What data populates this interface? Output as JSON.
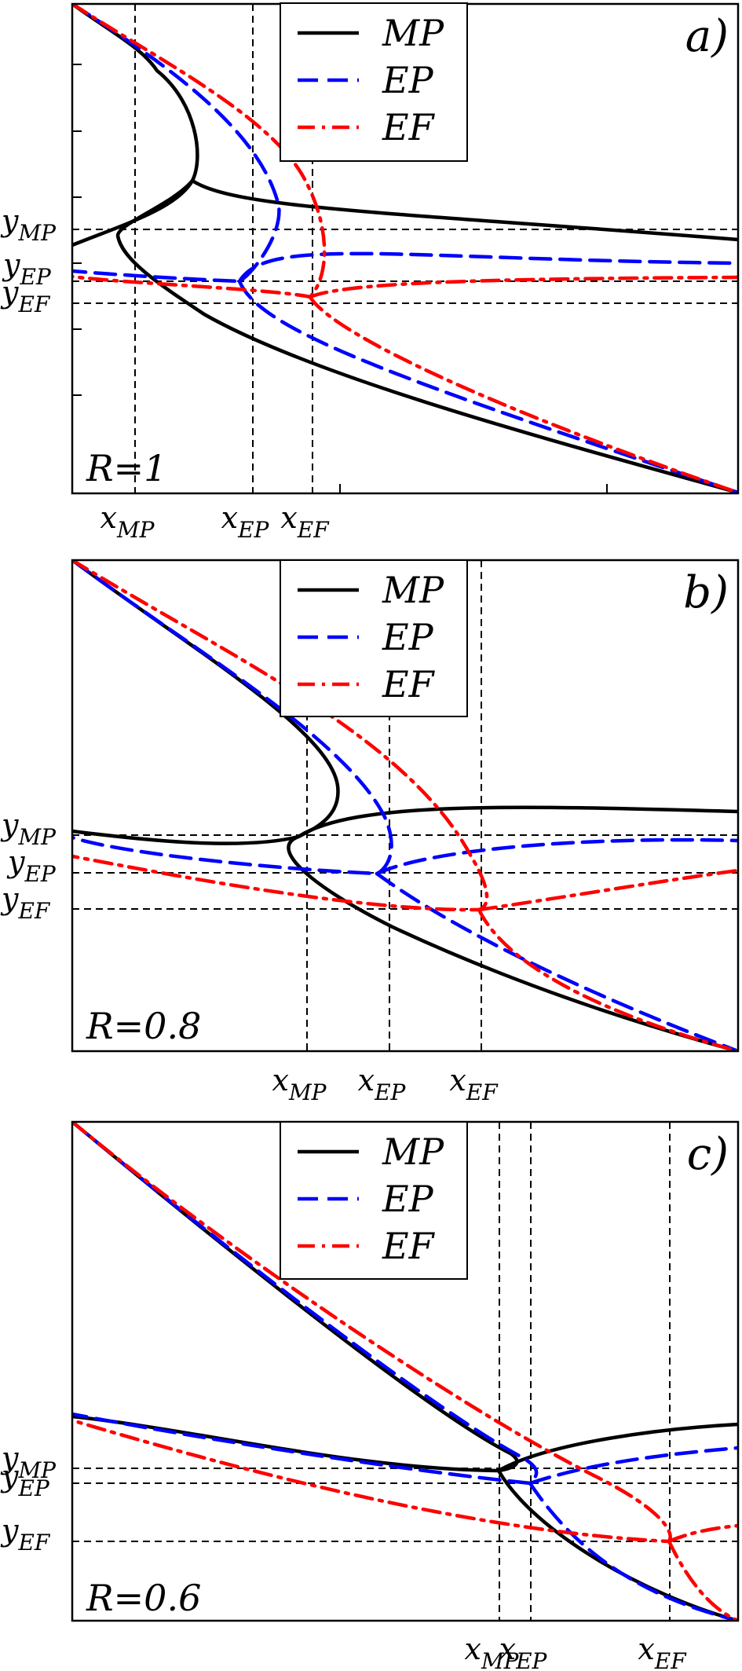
{
  "chart_data": [
    {
      "type": "line",
      "panel_label": "a)",
      "annotation": "R=1",
      "legend_position": "top-center",
      "x_markers": [
        {
          "main": "x",
          "sub": "MP"
        },
        {
          "main": "x",
          "sub": "EP"
        },
        {
          "main": "x",
          "sub": "EF"
        }
      ],
      "y_markers": [
        {
          "main": "y",
          "sub": "MP"
        },
        {
          "main": "y",
          "sub": "EP"
        },
        {
          "main": "y",
          "sub": "EF"
        }
      ],
      "series": [
        {
          "name": "MP",
          "color": "#000000",
          "style": "solid"
        },
        {
          "name": "EP",
          "color": "#0000ff",
          "style": "dashed"
        },
        {
          "name": "EF",
          "color": "#ff0000",
          "style": "dash-dot"
        }
      ]
    },
    {
      "type": "line",
      "panel_label": "b)",
      "annotation": "R=0.8",
      "legend_position": "top-center",
      "x_markers": [
        {
          "main": "x",
          "sub": "MP"
        },
        {
          "main": "x",
          "sub": "EP"
        },
        {
          "main": "x",
          "sub": "EF"
        }
      ],
      "y_markers": [
        {
          "main": "y",
          "sub": "MP"
        },
        {
          "main": "y",
          "sub": "EP"
        },
        {
          "main": "y",
          "sub": "EF"
        }
      ],
      "series": [
        {
          "name": "MP",
          "color": "#000000",
          "style": "solid"
        },
        {
          "name": "EP",
          "color": "#0000ff",
          "style": "dashed"
        },
        {
          "name": "EF",
          "color": "#ff0000",
          "style": "dash-dot"
        }
      ]
    },
    {
      "type": "line",
      "panel_label": "c)",
      "annotation": "R=0.6",
      "legend_position": "top-center",
      "x_markers": [
        {
          "main": "x",
          "sub": "MP"
        },
        {
          "main": "x",
          "sub": "EP"
        },
        {
          "main": "x",
          "sub": "EF"
        }
      ],
      "y_markers": [
        {
          "main": "y",
          "sub": "MP"
        },
        {
          "main": "y",
          "sub": "EP"
        },
        {
          "main": "y",
          "sub": "EF"
        }
      ],
      "series": [
        {
          "name": "MP",
          "color": "#000000",
          "style": "solid"
        },
        {
          "name": "EP",
          "color": "#0000ff",
          "style": "dashed"
        },
        {
          "name": "EF",
          "color": "#ff0000",
          "style": "dash-dot"
        }
      ]
    }
  ]
}
